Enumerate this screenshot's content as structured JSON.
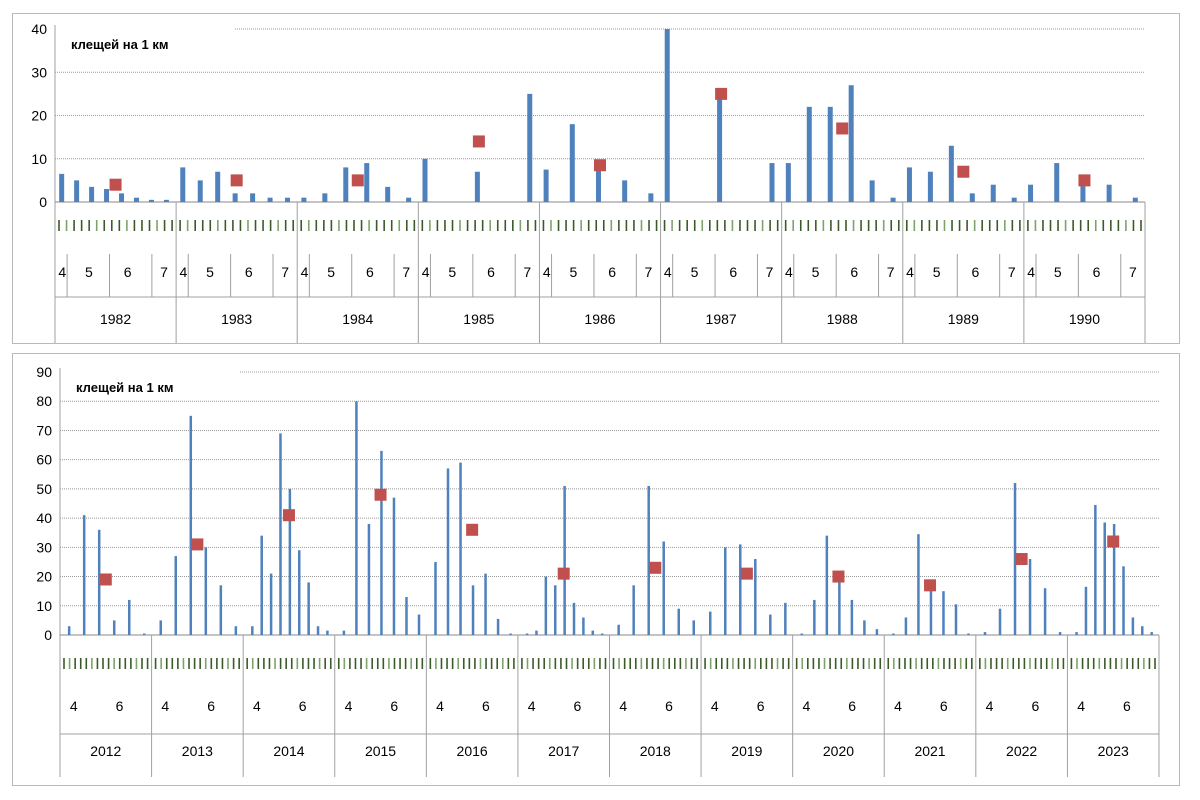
{
  "chart_data": [
    {
      "type": "bar",
      "ylabel": "клещей на 1 км",
      "ylim": [
        0,
        40
      ],
      "yticks": [
        0,
        10,
        20,
        30,
        40
      ],
      "month_labels": [
        "4",
        "5",
        "6",
        "7"
      ],
      "years": [
        {
          "year": "1982",
          "bars": [
            6.5,
            5,
            3.5,
            3,
            2,
            1,
            0.5,
            0.5
          ],
          "mean": 4
        },
        {
          "year": "1983",
          "bars": [
            8,
            5,
            7,
            2,
            2,
            1,
            1
          ],
          "mean": 5
        },
        {
          "year": "1984",
          "bars": [
            1,
            2,
            8,
            9,
            3.5,
            1
          ],
          "mean": 5
        },
        {
          "year": "1985",
          "bars": [
            10,
            7,
            25
          ],
          "mean": 14
        },
        {
          "year": "1986",
          "bars": [
            7.5,
            18,
            9,
            5,
            2
          ],
          "mean": 8.5
        },
        {
          "year": "1987",
          "bars": [
            40,
            26,
            9
          ],
          "mean": 25
        },
        {
          "year": "1988",
          "bars": [
            9,
            22,
            22,
            27,
            5,
            1
          ],
          "mean": 17
        },
        {
          "year": "1989",
          "bars": [
            8,
            7,
            13,
            2,
            4,
            1
          ],
          "mean": 7
        },
        {
          "year": "1990",
          "bars": [
            4,
            9,
            6,
            4,
            1
          ],
          "mean": 5
        }
      ]
    },
    {
      "type": "bar",
      "ylabel": "клещей на 1 км",
      "ylim": [
        0,
        90
      ],
      "yticks": [
        0,
        10,
        20,
        30,
        40,
        50,
        60,
        70,
        80,
        90
      ],
      "month_labels": [
        "4",
        "6"
      ],
      "years": [
        {
          "year": "2012",
          "bars": [
            3,
            41,
            36,
            5,
            12,
            0.5
          ],
          "mean": 19
        },
        {
          "year": "2013",
          "bars": [
            5,
            27,
            75,
            30,
            17,
            3
          ],
          "mean": 31
        },
        {
          "year": "2014",
          "bars": [
            3,
            34,
            21,
            69,
            50,
            29,
            18,
            3,
            1.5
          ],
          "mean": 41
        },
        {
          "year": "2015",
          "bars": [
            1.5,
            80,
            38,
            63,
            47,
            13,
            7
          ],
          "mean": 48
        },
        {
          "year": "2016",
          "bars": [
            25,
            57,
            59,
            17,
            21,
            5.5,
            0.5
          ],
          "mean": 36
        },
        {
          "year": "2017",
          "bars": [
            0.5,
            1.5,
            20,
            17,
            51,
            11,
            6,
            1.5,
            0.5
          ],
          "mean": 21
        },
        {
          "year": "2018",
          "bars": [
            3.5,
            17,
            51,
            32,
            9,
            5
          ],
          "mean": 23
        },
        {
          "year": "2019",
          "bars": [
            8,
            30,
            31,
            26,
            7,
            11
          ],
          "mean": 21
        },
        {
          "year": "2020",
          "bars": [
            0.5,
            12,
            34,
            20,
            12,
            5,
            2
          ],
          "mean": 20
        },
        {
          "year": "2021",
          "bars": [
            0.5,
            6,
            34.5,
            18,
            15,
            10.5,
            0.5
          ],
          "mean": 17
        },
        {
          "year": "2022",
          "bars": [
            1,
            9,
            52,
            26,
            16,
            1
          ],
          "mean": 26
        },
        {
          "year": "2023",
          "bars": [
            1,
            16.5,
            44.5,
            38.5,
            38,
            23.5,
            6,
            3,
            1
          ],
          "mean": 32
        }
      ]
    }
  ],
  "colors": {
    "bar": "#4f81bd",
    "mean": "#c0504d",
    "grid": "#999999",
    "axis": "#a0a0a0",
    "tick": "#3c5a28"
  }
}
